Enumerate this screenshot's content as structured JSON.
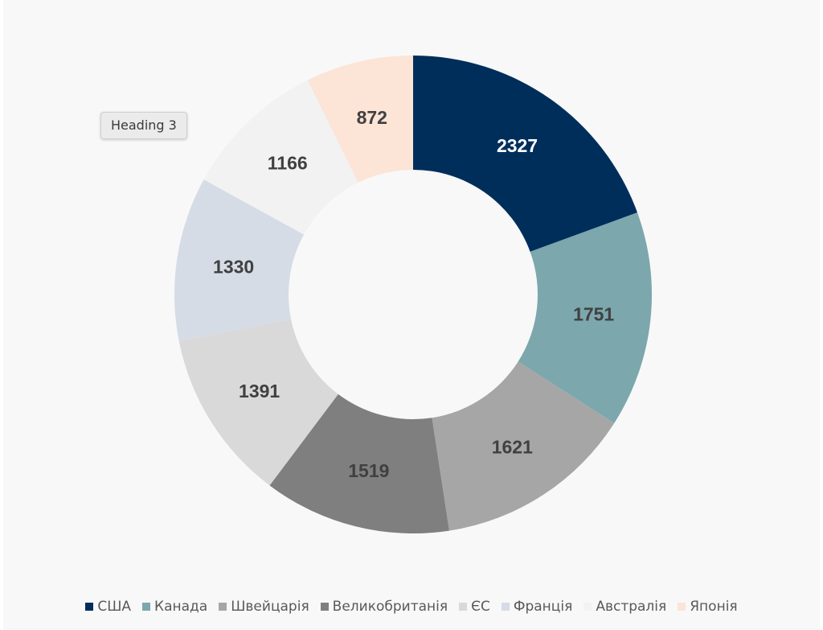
{
  "tooltip": "Heading 3",
  "chart_data": {
    "type": "pie",
    "donut": true,
    "legend_position": "bottom",
    "categories": [
      "США",
      "Канада",
      "Швейцарія",
      "Великобританія",
      "ЄС",
      "Франція",
      "Австралія",
      "Японія"
    ],
    "values": [
      2327,
      1751,
      1621,
      1519,
      1391,
      1330,
      1166,
      872
    ],
    "colors": [
      "#002e5b",
      "#7ba7ad",
      "#a6a6a6",
      "#7f7f7f",
      "#d9d9d9",
      "#d5dce6",
      "#f2f2f2",
      "#fce4d6"
    ],
    "label_colors": [
      "#ffffff",
      "#404040",
      "#404040",
      "#404040",
      "#404040",
      "#404040",
      "#404040",
      "#404040"
    ]
  }
}
